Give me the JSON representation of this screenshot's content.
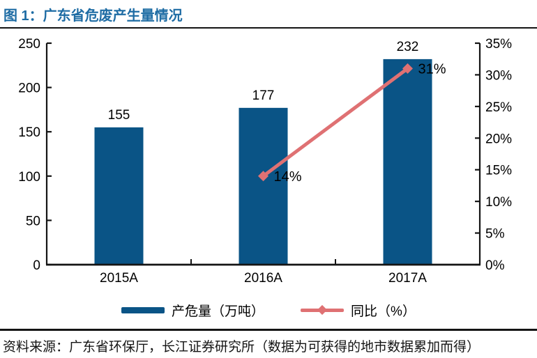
{
  "colors": {
    "bar": "#0A5486",
    "line": "#DF7173",
    "title": "#1E6CA4",
    "axis": "#141414",
    "text": "#000000"
  },
  "footer": {
    "source": "资料来源：广东省环保厅，长江证券研究所（数据为可获得的地市数据累加而得）"
  },
  "chart_data": {
    "type": "bar",
    "title": "图 1：广东省危废产生量情况",
    "categories": [
      "2015A",
      "2016A",
      "2017A"
    ],
    "series": [
      {
        "name": "产危量（万吨）",
        "type": "bar",
        "axis": "left",
        "values": [
          155,
          177,
          232
        ]
      },
      {
        "name": "同比（%）",
        "type": "line",
        "axis": "right",
        "values": [
          null,
          14,
          31
        ]
      }
    ],
    "bar_labels": [
      "155",
      "177",
      "232"
    ],
    "point_labels": [
      "",
      "14%",
      "31%"
    ],
    "left_axis": {
      "min": 0,
      "max": 250,
      "step": 50,
      "tick_labels": [
        "0",
        "50",
        "100",
        "150",
        "200",
        "250"
      ]
    },
    "right_axis": {
      "min": 0,
      "max": 35,
      "step": 5,
      "tick_labels": [
        "0%",
        "5%",
        "10%",
        "15%",
        "20%",
        "25%",
        "30%",
        "35%"
      ]
    },
    "grid": false,
    "legend": {
      "position": "bottom",
      "items": [
        {
          "label": "产危量（万吨）",
          "swatch": "bar"
        },
        {
          "label": "同比（%）",
          "swatch": "line"
        }
      ]
    }
  }
}
